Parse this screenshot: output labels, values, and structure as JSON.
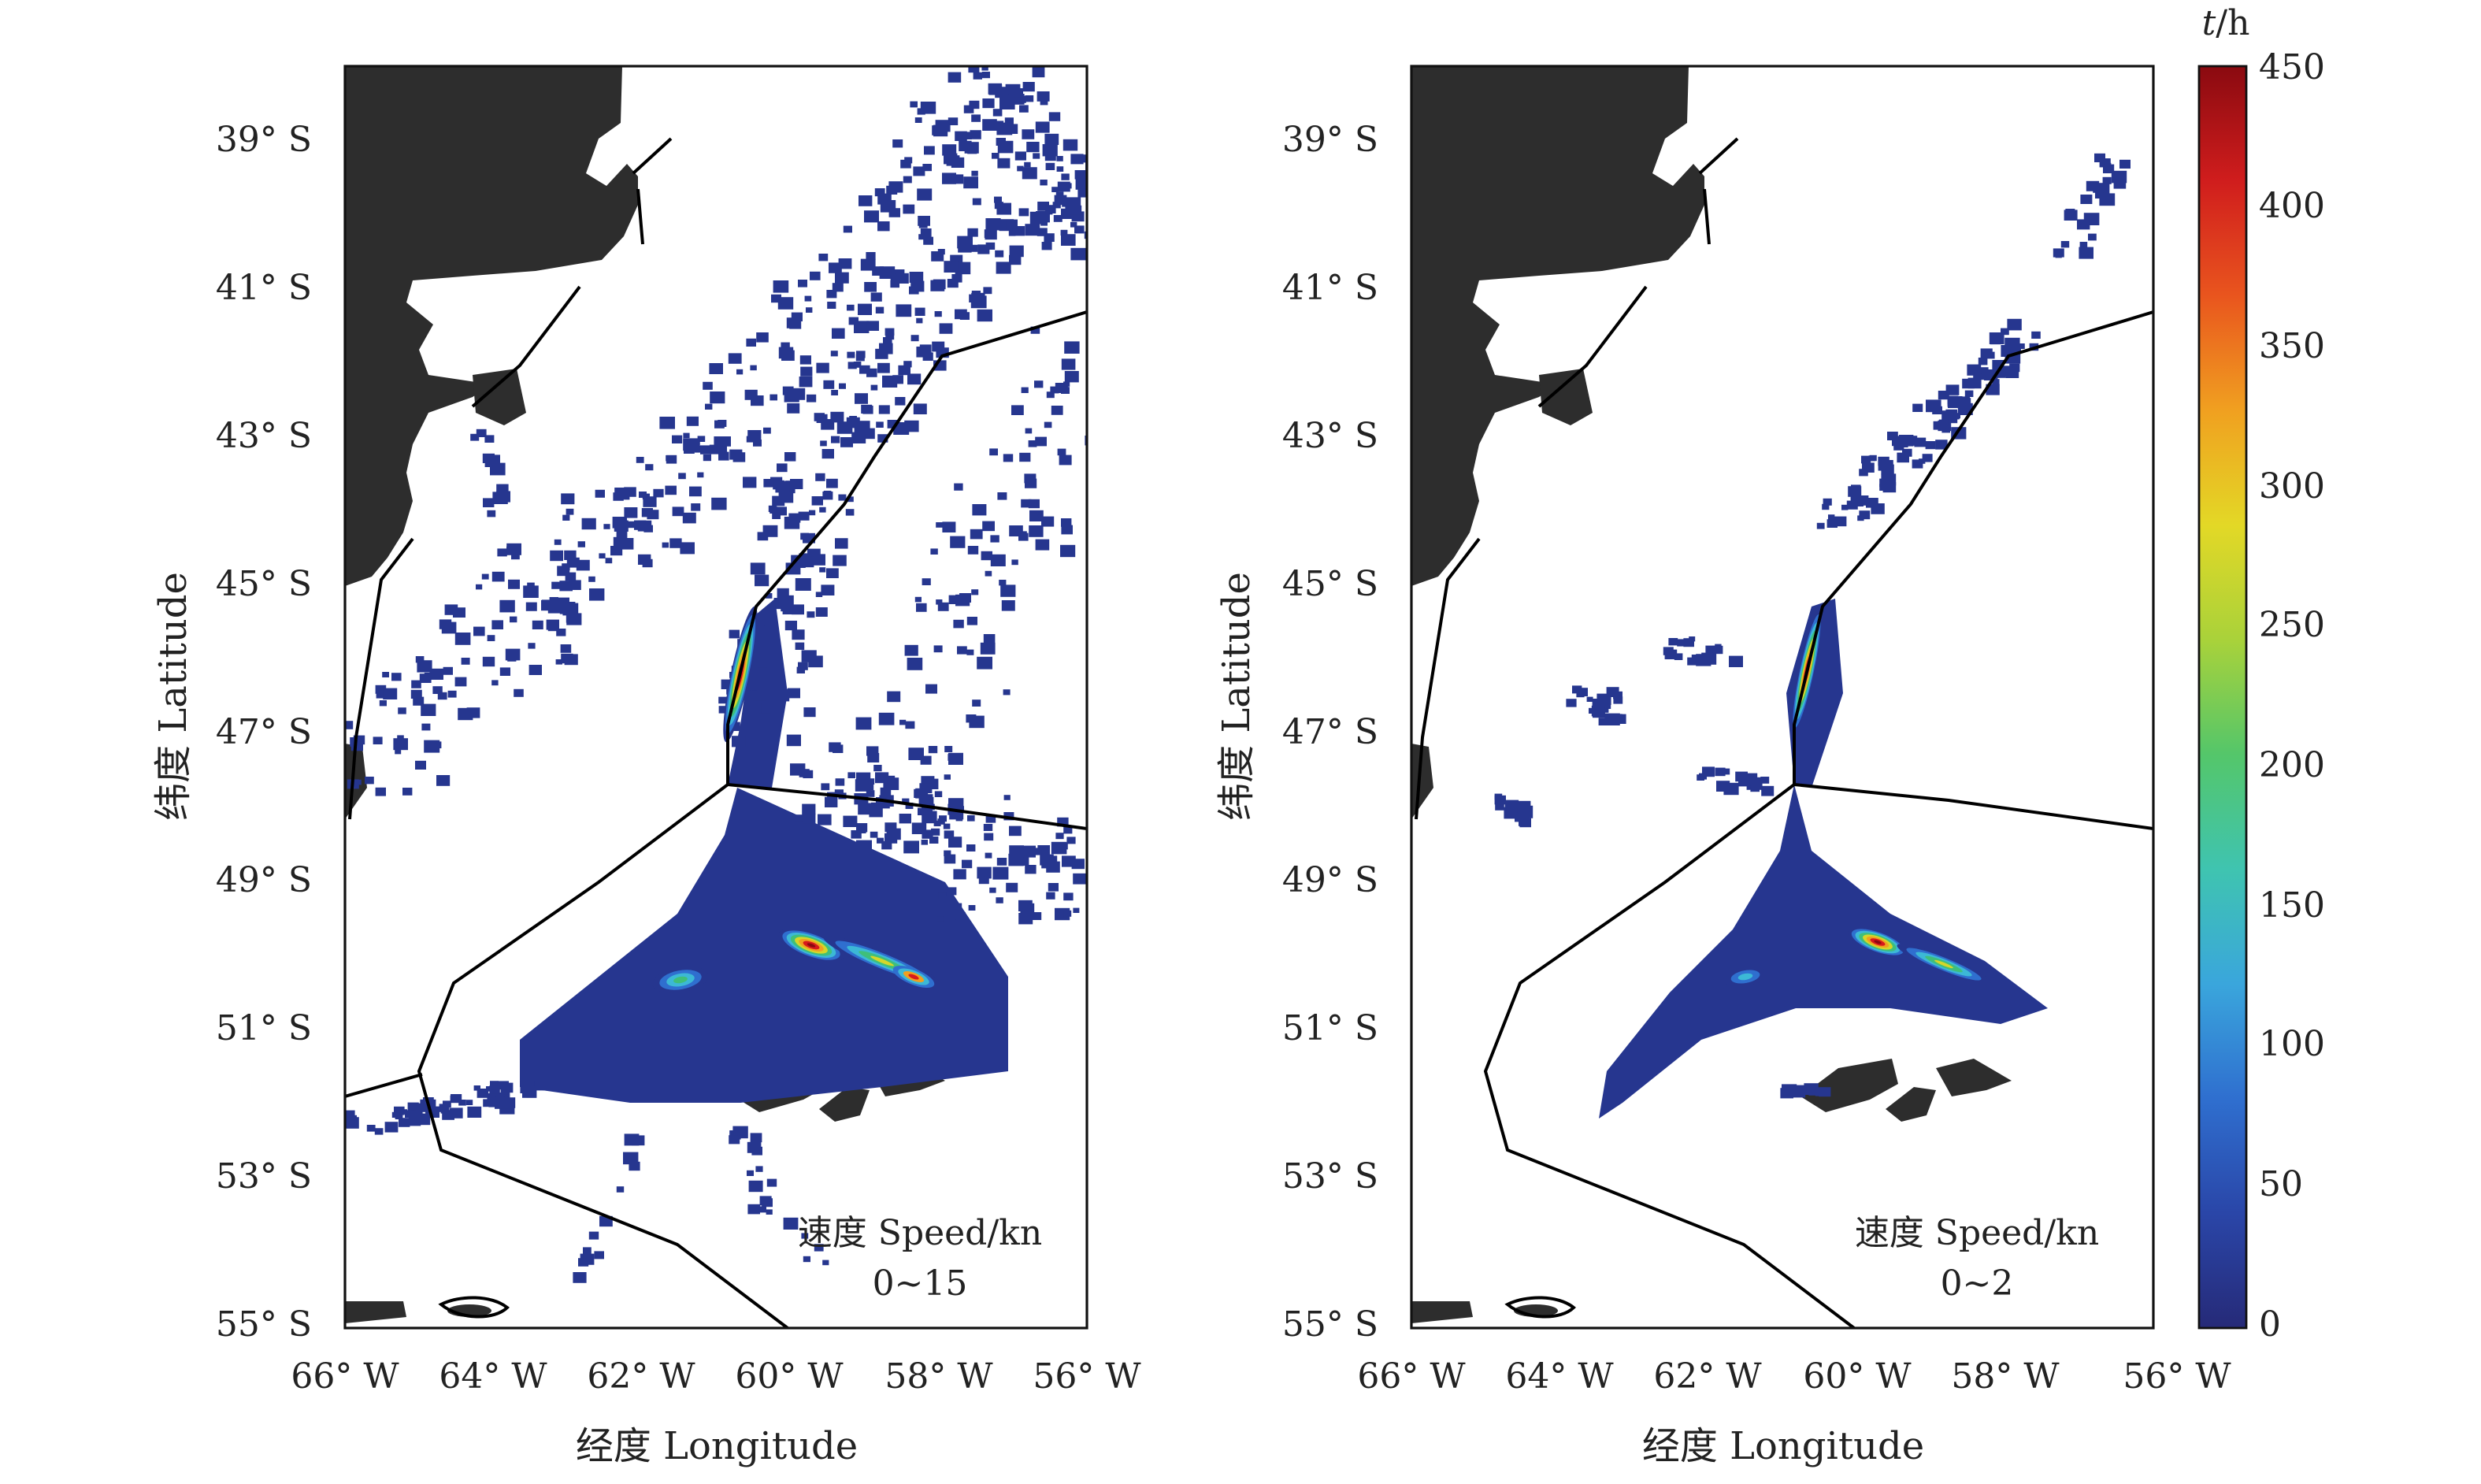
{
  "colors": {
    "land": "#2d2d2d",
    "frame": "#111111",
    "boundary": "#000000",
    "low": "#26368f",
    "cyan": "#3cb8d6",
    "green": "#3fbf7a",
    "yellow": "#d4d62a",
    "red": "#d7191c",
    "darkred": "#8a0a10"
  },
  "axes": {
    "x_label": "经度 Longitude",
    "y_label": "纬度 Latitude",
    "x_ticks": [
      "66° W",
      "64° W",
      "62° W",
      "60° W",
      "58° W",
      "56° W"
    ],
    "y_ticks": [
      "39° S",
      "41° S",
      "43° S",
      "45° S",
      "47° S",
      "49° S",
      "51° S",
      "53° S",
      "55° S"
    ],
    "lon_range": [
      -66,
      -56
    ],
    "lat_range": [
      -38,
      -55
    ]
  },
  "panels": [
    {
      "id": "left",
      "annotation_line1": "速度 Speed/kn",
      "annotation_line2": "0~15"
    },
    {
      "id": "right",
      "annotation_line1": "速度 Speed/kn",
      "annotation_line2": "0~2"
    }
  ],
  "colorbar": {
    "title_italic": "t",
    "title_rest": "/h",
    "ticks": [
      "450",
      "400",
      "350",
      "300",
      "250",
      "200",
      "150",
      "100",
      "50",
      "0"
    ],
    "range": [
      0,
      450
    ],
    "stops": [
      "#262a78",
      "#2a46a8",
      "#2f6fcf",
      "#3aa6dc",
      "#3fc4b0",
      "#54c66a",
      "#a9d23a",
      "#e3d826",
      "#f0a020",
      "#e9551e",
      "#d01d1d",
      "#8a0a10"
    ]
  }
}
